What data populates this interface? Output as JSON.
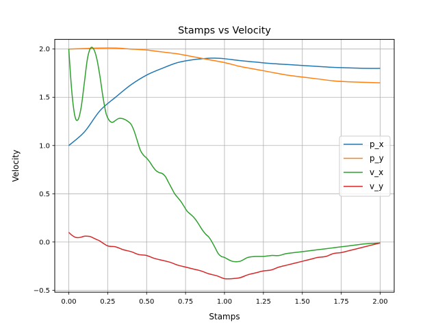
{
  "chart_data": {
    "type": "line",
    "title": "Stamps vs Velocity",
    "xlabel": "Stamps",
    "ylabel": "Velocity",
    "xlim": [
      -0.09,
      2.09
    ],
    "ylim": [
      -0.52,
      2.1
    ],
    "xticks": [
      0.0,
      0.25,
      0.5,
      0.75,
      1.0,
      1.25,
      1.5,
      1.75,
      2.0
    ],
    "xtick_labels": [
      "0.00",
      "0.25",
      "0.50",
      "0.75",
      "1.00",
      "1.25",
      "1.50",
      "1.75",
      "2.00"
    ],
    "yticks": [
      -0.5,
      0.0,
      0.5,
      1.0,
      1.5,
      2.0
    ],
    "ytick_labels": [
      "−0.5",
      "0.0",
      "0.5",
      "1.0",
      "1.5",
      "2.0"
    ],
    "grid": true,
    "legend_position": "center-right",
    "series": [
      {
        "name": "p_x",
        "color": "#1f77b4",
        "x": [
          0.0,
          0.1,
          0.2,
          0.3,
          0.4,
          0.5,
          0.6,
          0.7,
          0.8,
          0.9,
          0.95,
          1.0,
          1.1,
          1.2,
          1.3,
          1.4,
          1.5,
          1.6,
          1.7,
          1.8,
          1.9,
          2.0
        ],
        "y": [
          1.0,
          1.14,
          1.36,
          1.5,
          1.63,
          1.73,
          1.8,
          1.86,
          1.89,
          1.905,
          1.905,
          1.9,
          1.88,
          1.865,
          1.85,
          1.84,
          1.83,
          1.82,
          1.81,
          1.805,
          1.8,
          1.8
        ]
      },
      {
        "name": "p_y",
        "color": "#ff7f0e",
        "x": [
          0.0,
          0.1,
          0.2,
          0.3,
          0.4,
          0.5,
          0.6,
          0.7,
          0.8,
          0.9,
          1.0,
          1.1,
          1.2,
          1.3,
          1.4,
          1.5,
          1.6,
          1.7,
          1.8,
          1.9,
          2.0
        ],
        "y": [
          2.0,
          2.005,
          2.01,
          2.01,
          2.0,
          1.99,
          1.97,
          1.95,
          1.92,
          1.89,
          1.86,
          1.82,
          1.79,
          1.76,
          1.73,
          1.71,
          1.69,
          1.67,
          1.66,
          1.655,
          1.65
        ]
      },
      {
        "name": "v_x",
        "color": "#2ca02c",
        "x": [
          0.0,
          0.02,
          0.04,
          0.06,
          0.08,
          0.1,
          0.12,
          0.14,
          0.16,
          0.18,
          0.2,
          0.22,
          0.24,
          0.26,
          0.28,
          0.3,
          0.32,
          0.34,
          0.36,
          0.38,
          0.4,
          0.42,
          0.44,
          0.46,
          0.48,
          0.5,
          0.52,
          0.54,
          0.56,
          0.58,
          0.6,
          0.62,
          0.64,
          0.66,
          0.68,
          0.7,
          0.72,
          0.74,
          0.76,
          0.78,
          0.8,
          0.82,
          0.84,
          0.86,
          0.88,
          0.9,
          0.92,
          0.94,
          0.96,
          0.98,
          1.0,
          1.05,
          1.1,
          1.15,
          1.2,
          1.25,
          1.3,
          1.35,
          1.4,
          1.5,
          1.6,
          1.7,
          1.8,
          1.9,
          2.0
        ],
        "y": [
          2.0,
          1.55,
          1.3,
          1.27,
          1.4,
          1.65,
          1.9,
          2.01,
          2.0,
          1.9,
          1.72,
          1.5,
          1.33,
          1.26,
          1.24,
          1.26,
          1.28,
          1.28,
          1.27,
          1.25,
          1.22,
          1.15,
          1.05,
          0.95,
          0.9,
          0.87,
          0.83,
          0.78,
          0.74,
          0.72,
          0.71,
          0.68,
          0.62,
          0.56,
          0.5,
          0.46,
          0.42,
          0.37,
          0.32,
          0.29,
          0.26,
          0.22,
          0.17,
          0.12,
          0.08,
          0.05,
          0.0,
          -0.06,
          -0.12,
          -0.15,
          -0.16,
          -0.2,
          -0.2,
          -0.16,
          -0.15,
          -0.15,
          -0.14,
          -0.14,
          -0.12,
          -0.1,
          -0.08,
          -0.06,
          -0.04,
          -0.02,
          -0.01
        ]
      },
      {
        "name": "v_y",
        "color": "#d62728",
        "x": [
          0.0,
          0.02,
          0.04,
          0.06,
          0.08,
          0.1,
          0.12,
          0.14,
          0.16,
          0.18,
          0.2,
          0.25,
          0.3,
          0.35,
          0.4,
          0.45,
          0.5,
          0.55,
          0.6,
          0.65,
          0.7,
          0.75,
          0.8,
          0.85,
          0.9,
          0.95,
          1.0,
          1.05,
          1.1,
          1.15,
          1.2,
          1.25,
          1.3,
          1.35,
          1.4,
          1.45,
          1.5,
          1.55,
          1.6,
          1.65,
          1.7,
          1.75,
          1.8,
          1.85,
          1.9,
          1.95,
          2.0
        ],
        "y": [
          0.1,
          0.07,
          0.05,
          0.045,
          0.05,
          0.06,
          0.06,
          0.055,
          0.04,
          0.025,
          0.01,
          -0.04,
          -0.05,
          -0.08,
          -0.1,
          -0.13,
          -0.14,
          -0.17,
          -0.19,
          -0.21,
          -0.24,
          -0.26,
          -0.28,
          -0.3,
          -0.33,
          -0.35,
          -0.38,
          -0.38,
          -0.37,
          -0.34,
          -0.32,
          -0.3,
          -0.29,
          -0.26,
          -0.24,
          -0.22,
          -0.2,
          -0.18,
          -0.16,
          -0.15,
          -0.12,
          -0.11,
          -0.09,
          -0.07,
          -0.05,
          -0.03,
          -0.01
        ]
      }
    ]
  }
}
